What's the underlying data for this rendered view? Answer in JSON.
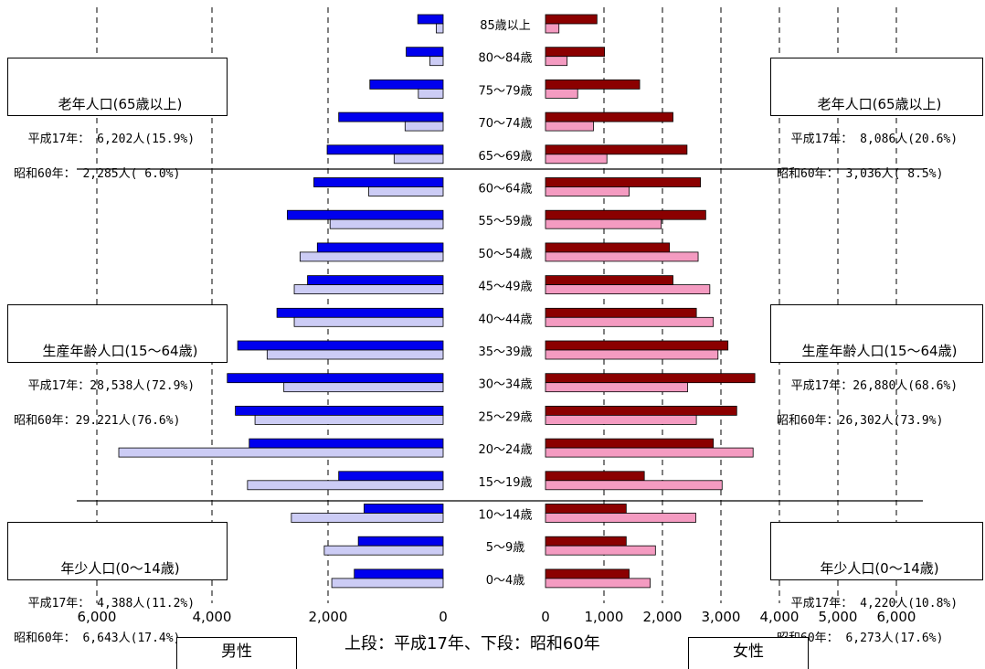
{
  "chart_data": {
    "type": "bar",
    "orientation": "horizontal",
    "categories": [
      "85歳以上",
      "80～84歳",
      "75～79歳",
      "70～74歳",
      "65～69歳",
      "60～64歳",
      "55～59歳",
      "50～54歳",
      "45～49歳",
      "40～44歳",
      "35～39歳",
      "30～34歳",
      "25～29歳",
      "20～24歳",
      "15～19歳",
      "10～14歳",
      "5～9歳",
      "0～4歳"
    ],
    "male": {
      "label": "男性",
      "x_ticks": [
        "6,000",
        "4,000",
        "2,000",
        "0"
      ],
      "xlim": [
        0,
        6000
      ],
      "series": [
        {
          "values": [
            440,
            640,
            1270,
            1810,
            2010,
            2240,
            2700,
            2180,
            2350,
            2880,
            3560,
            3740,
            3600,
            3360,
            1810,
            1370,
            1470,
            1540
          ]
        },
        {
          "values": [
            120,
            230,
            430,
            660,
            850,
            1290,
            1960,
            2480,
            2580,
            2580,
            3050,
            2760,
            3260,
            5620,
            3390,
            2630,
            2060,
            1930
          ]
        }
      ]
    },
    "female": {
      "label": "女性",
      "x_ticks": [
        "0",
        "1,000",
        "2,000",
        "3,000",
        "4,000",
        "5,000",
        "6,000"
      ],
      "xlim": [
        0,
        6000
      ],
      "series": [
        {
          "values": [
            880,
            1010,
            1610,
            2180,
            2420,
            2650,
            2740,
            2120,
            2180,
            2580,
            3120,
            3580,
            3270,
            2870,
            1690,
            1380,
            1380,
            1430
          ]
        },
        {
          "values": [
            230,
            370,
            550,
            820,
            1050,
            1430,
            1980,
            2610,
            2810,
            2870,
            2950,
            2430,
            2580,
            3550,
            3020,
            2570,
            1880,
            1790
          ]
        }
      ]
    },
    "caption": "上段：平成17年、下段：昭和60年"
  },
  "colors": {
    "male_2005": "#0000ee",
    "male_1985": "#ccccf5",
    "female_2005": "#8b0000",
    "female_1985": "#f49bc1"
  },
  "boxes": {
    "left_elderly": {
      "title": "老年人口(65歳以上)",
      "line1": "平成17年： 6,202人(15.9%)",
      "line2": "昭和60年： 2,285人( 6.0%)"
    },
    "left_working": {
      "title": "生産年齢人口(15～64歳)",
      "line1": "平成17年：28,538人(72.9%)",
      "line2": "昭和60年：29.221人(76.6%)"
    },
    "left_young": {
      "title": "年少人口(0～14歳)",
      "line1": "平成17年： 4,388人(11.2%)",
      "line2": "昭和60年： 6,643人(17.4%)"
    },
    "right_elderly": {
      "title": "老年人口(65歳以上)",
      "line1": "平成17年： 8,086人(20.6%)",
      "line2": "昭和60年： 3,036人( 8.5%)"
    },
    "right_working": {
      "title": "生産年齢人口(15～64歳)",
      "line1": "平成17年：26,880人(68.6%)",
      "line2": "昭和60年：26,302人(73.9%)"
    },
    "right_young": {
      "title": "年少人口(0～14歳)",
      "line1": "平成17年： 4,220人(10.8%)",
      "line2": "昭和60年： 6,273人(17.6%)"
    }
  }
}
